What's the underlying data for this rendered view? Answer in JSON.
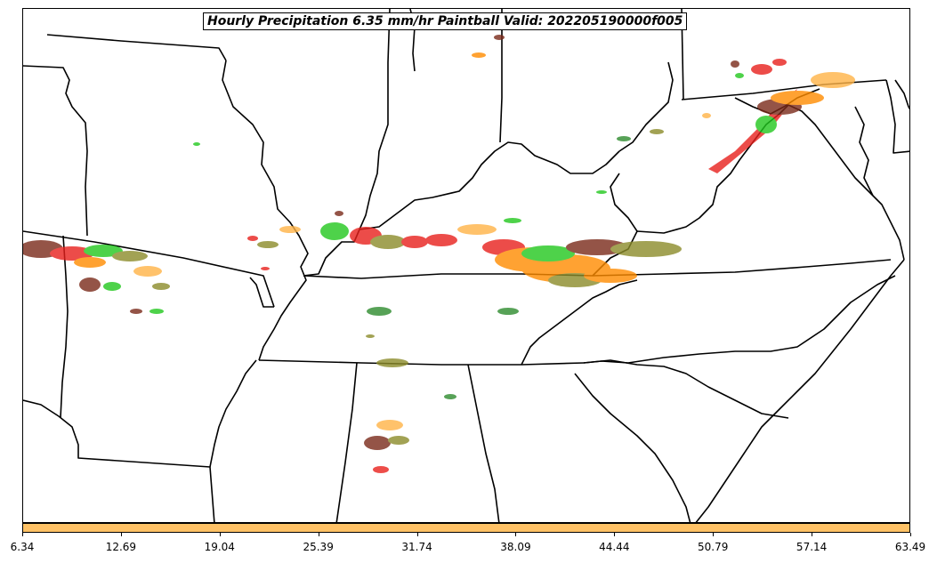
{
  "title": "Hourly Precipitation 6.35 mm/hr Paintball Valid: 202205190000f005",
  "colorbar": {
    "color": "#ffc266",
    "ticks": [
      "6.34",
      "12.69",
      "19.04",
      "25.39",
      "31.74",
      "38.09",
      "44.44",
      "50.79",
      "57.14",
      "63.49"
    ]
  },
  "colors": {
    "border": "#000000",
    "paintball_red": "#e8201c",
    "paintball_orange": "#ff8c00",
    "paintball_light_orange": "#ffb347",
    "paintball_green": "#22c81e",
    "paintball_dark_green": "#2e8b2e",
    "paintball_olive": "#8c8c2a",
    "paintball_brown": "#7a2a1a"
  }
}
